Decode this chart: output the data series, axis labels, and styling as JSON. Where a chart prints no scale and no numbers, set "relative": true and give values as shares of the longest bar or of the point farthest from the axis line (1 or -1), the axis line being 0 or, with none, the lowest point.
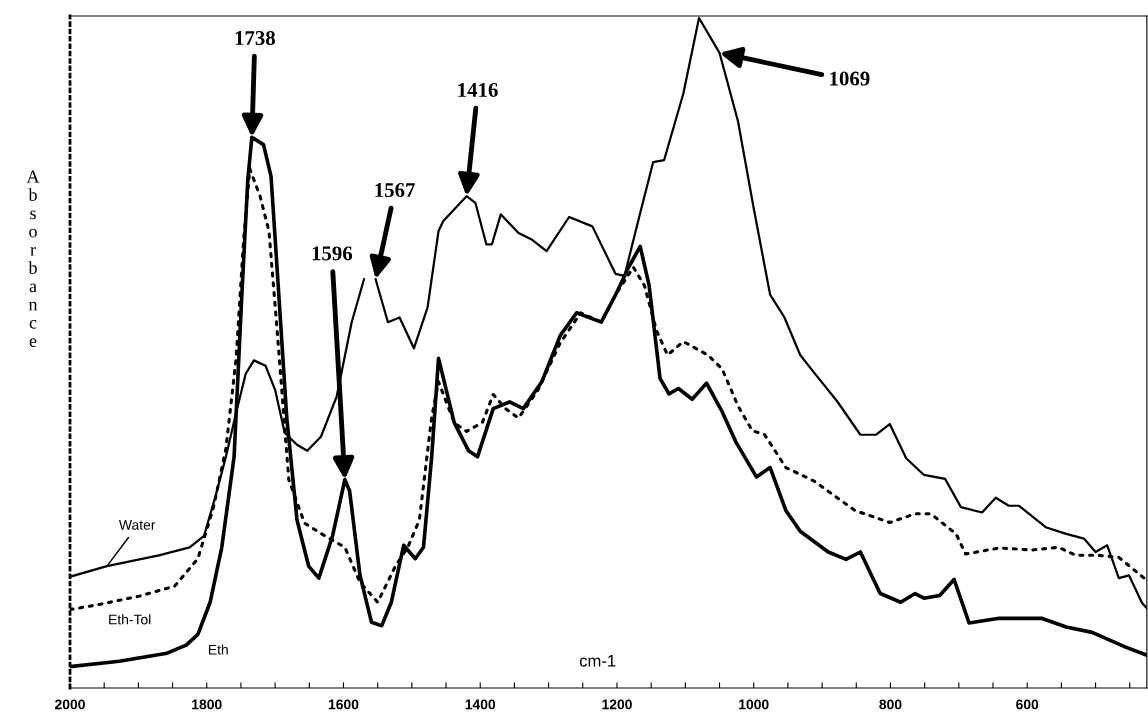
{
  "chart_data": {
    "type": "line",
    "relative": true,
    "xlabel": "cm-1",
    "ylabel": "Absorbance",
    "tick_labels": "x",
    "grid": false,
    "legend": false,
    "marker": "none",
    "xlim": [
      2000,
      425
    ],
    "xticks": [
      2000,
      {
        "value": 1950,
        "label": null
      },
      {
        "value": 1900,
        "label": null
      },
      {
        "value": 1850,
        "label": null
      },
      1800,
      {
        "value": 1750,
        "label": null
      },
      {
        "value": 1700,
        "label": null
      },
      {
        "value": 1650,
        "label": null
      },
      1600,
      {
        "value": 1550,
        "label": null
      },
      {
        "value": 1500,
        "label": null
      },
      {
        "value": 1450,
        "label": null
      },
      1400,
      {
        "value": 1350,
        "label": null
      },
      {
        "value": 1300,
        "label": null
      },
      {
        "value": 1250,
        "label": null
      },
      1200,
      {
        "value": 1150,
        "label": null
      },
      {
        "value": 1100,
        "label": null
      },
      {
        "value": 1050,
        "label": null
      },
      1000,
      {
        "value": 950,
        "label": null
      },
      {
        "value": 900,
        "label": null
      },
      {
        "value": 850,
        "label": null
      },
      800,
      {
        "value": 750,
        "label": null
      },
      {
        "value": 700,
        "label": null
      },
      {
        "value": 650,
        "label": null
      },
      600,
      {
        "value": 550,
        "label": null
      },
      {
        "value": 500,
        "label": null
      },
      {
        "value": 450,
        "label": null
      }
    ],
    "annotations": [
      {
        "text": "1738",
        "x": 1734,
        "y": 0.822
      },
      {
        "text": "1596",
        "x": 1598,
        "y": 0.311
      },
      {
        "text": "1567",
        "x": 1553,
        "y": 0.61
      },
      {
        "text": "1416",
        "x": 1420,
        "y": 0.734
      },
      {
        "text": "1069",
        "x": 1050,
        "y": 0.948
      }
    ],
    "series": [
      {
        "name": "Water",
        "color": "#000000",
        "line_style": "solid",
        "x": [
          2000,
          1946,
          1870,
          1825,
          1804,
          1787,
          1772,
          1757,
          1743,
          1731,
          1714,
          1700,
          1686,
          1668,
          1653,
          1633,
          1610,
          1588,
          1570,
          1562,
          1553,
          1535,
          1518,
          1497,
          1477,
          1461,
          1454,
          1420,
          1407,
          1391,
          1383,
          1370,
          1344,
          1324,
          1303,
          1270,
          1236,
          1202,
          1189,
          1169,
          1147,
          1131,
          1103,
          1080,
          1050,
          1023,
          1000,
          976,
          955,
          932,
          912,
          878,
          844,
          821,
          801,
          777,
          751,
          720,
          697,
          666,
          646,
          627,
          612,
          573,
          543,
          517,
          500,
          483,
          466,
          451,
          432,
          425
        ],
        "values": [
          0.166,
          0.182,
          0.198,
          0.21,
          0.227,
          0.287,
          0.345,
          0.411,
          0.469,
          0.489,
          0.481,
          0.445,
          0.381,
          0.363,
          0.354,
          0.375,
          0.435,
          0.546,
          0.61,
          null,
          0.61,
          0.546,
          0.553,
          0.507,
          0.568,
          0.682,
          0.697,
          0.734,
          0.724,
          0.662,
          0.662,
          0.707,
          0.679,
          0.669,
          0.652,
          0.703,
          0.689,
          0.618,
          0.615,
          0.697,
          0.785,
          0.788,
          0.887,
          1.0,
          0.948,
          0.846,
          0.716,
          0.587,
          0.553,
          0.497,
          0.471,
          0.428,
          0.378,
          0.378,
          0.394,
          0.343,
          0.318,
          0.312,
          0.27,
          0.262,
          0.284,
          0.272,
          0.272,
          0.24,
          0.23,
          0.223,
          0.203,
          0.213,
          0.164,
          0.168,
          0.127,
          0.119
        ]
      },
      {
        "name": "Eth-Tol",
        "color": "#000000",
        "line_style": "dotted",
        "x": [
          2000,
          1956,
          1899,
          1847,
          1813,
          1790,
          1772,
          1757,
          1746,
          1737,
          1722,
          1709,
          1698,
          1680,
          1657,
          1627,
          1598,
          1576,
          1550,
          1524,
          1506,
          1489,
          1471,
          1461,
          1438,
          1420,
          1397,
          1381,
          1363,
          1344,
          1316,
          1283,
          1253,
          1223,
          1202,
          1176,
          1160,
          1142,
          1126,
          1103,
          1067,
          1046,
          1023,
          1002,
          984,
          953,
          912,
          852,
          801,
          764,
          741,
          704,
          690,
          641,
          593,
          554,
          529,
          495,
          466,
          429,
          425
        ],
        "values": [
          0.117,
          0.125,
          0.137,
          0.152,
          0.193,
          0.27,
          0.357,
          0.492,
          0.67,
          0.775,
          0.734,
          0.682,
          0.546,
          0.311,
          0.246,
          0.227,
          0.21,
          0.158,
          0.128,
          0.182,
          0.21,
          0.251,
          0.404,
          0.457,
          0.396,
          0.383,
          0.396,
          0.438,
          0.417,
          0.403,
          0.444,
          0.515,
          0.56,
          0.546,
          0.587,
          0.628,
          0.601,
          0.533,
          0.497,
          0.517,
          0.497,
          0.476,
          0.421,
          0.384,
          0.378,
          0.329,
          0.309,
          0.265,
          0.247,
          0.26,
          0.26,
          0.23,
          0.2,
          0.209,
          0.206,
          0.21,
          0.198,
          0.198,
          0.195,
          0.164,
          0.168
        ]
      },
      {
        "name": "Eth",
        "color": "#000000",
        "line_style": "solid",
        "x": [
          2000,
          1928,
          1858,
          1830,
          1813,
          1795,
          1778,
          1760,
          1749,
          1740,
          1734,
          1717,
          1706,
          1698,
          1683,
          1668,
          1651,
          1636,
          1616,
          1598,
          1591,
          1576,
          1559,
          1544,
          1530,
          1512,
          1495,
          1483,
          1471,
          1461,
          1438,
          1417,
          1404,
          1381,
          1357,
          1337,
          1310,
          1283,
          1259,
          1223,
          1202,
          1183,
          1166,
          1153,
          1137,
          1124,
          1110,
          1090,
          1069,
          1046,
          1026,
          996,
          976,
          953,
          932,
          891,
          865,
          844,
          815,
          785,
          764,
          751,
          728,
          707,
          685,
          641,
          579,
          543,
          505,
          456,
          425
        ],
        "values": [
          0.032,
          0.04,
          0.052,
          0.064,
          0.08,
          0.128,
          0.21,
          0.345,
          0.58,
          0.758,
          0.822,
          0.811,
          0.764,
          0.64,
          0.404,
          0.251,
          0.182,
          0.164,
          0.227,
          0.311,
          0.294,
          0.169,
          0.098,
          0.093,
          0.128,
          0.213,
          0.193,
          0.21,
          0.345,
          0.492,
          0.396,
          0.354,
          0.345,
          0.417,
          0.427,
          0.417,
          0.457,
          0.526,
          0.56,
          0.546,
          0.587,
          0.628,
          0.659,
          0.601,
          0.462,
          0.439,
          0.447,
          0.431,
          0.455,
          0.412,
          0.367,
          0.315,
          0.329,
          0.265,
          0.234,
          0.203,
          0.192,
          0.203,
          0.141,
          0.128,
          0.141,
          0.134,
          0.138,
          0.162,
          0.097,
          0.104,
          0.104,
          0.091,
          0.083,
          0.061,
          0.049
        ]
      }
    ]
  }
}
